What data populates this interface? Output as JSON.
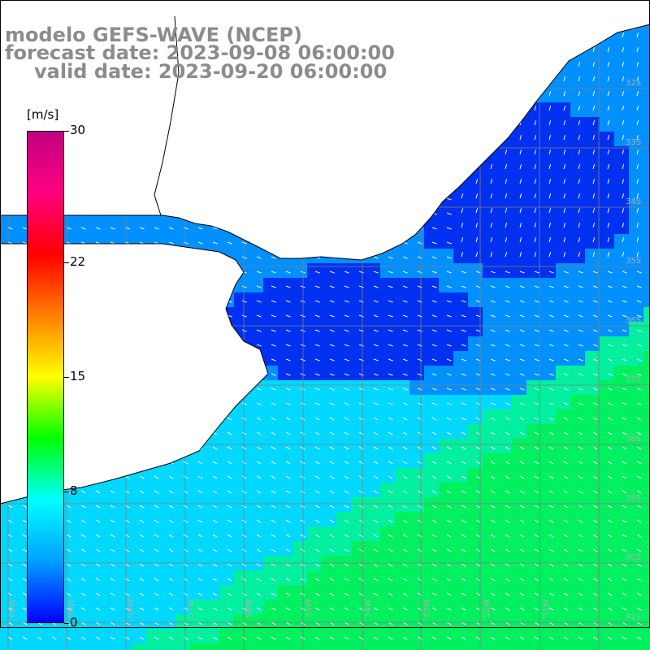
{
  "title": {
    "line1": "modelo GEFS-WAVE (NCEP)",
    "line2": "forecast date: 2023-09-08 06:00:00",
    "line3": "valid date: 2023-09-20 06:00:00"
  },
  "colorbar": {
    "unit": "[m/s]",
    "ticks": [
      "30",
      "22",
      "15",
      "8",
      "0"
    ],
    "tick_values": [
      30,
      22,
      15,
      8,
      0
    ],
    "min": 0,
    "max": 30,
    "colors": [
      "#0000ff",
      "#00a0ff",
      "#00ffff",
      "#00ff00",
      "#ffff00",
      "#ff8000",
      "#ff0000",
      "#ff0080",
      "#c00080"
    ]
  },
  "map": {
    "lat_labels": [
      "32S",
      "33S",
      "34S",
      "35S",
      "36S",
      "37S",
      "38S",
      "39S",
      "40S",
      "41S"
    ],
    "lon_labels": [
      "60W",
      "59W",
      "58W",
      "57W",
      "56W",
      "55W",
      "54W",
      "53W",
      "52W",
      "51W"
    ],
    "land_color": "#ffffff",
    "grid_color": "#808080",
    "coast_color": "#000000",
    "ocean_colors": {
      "calm": "#0030f0",
      "light": "#0090ff",
      "moderate": "#00d8ff",
      "strong": "#00f060"
    }
  }
}
